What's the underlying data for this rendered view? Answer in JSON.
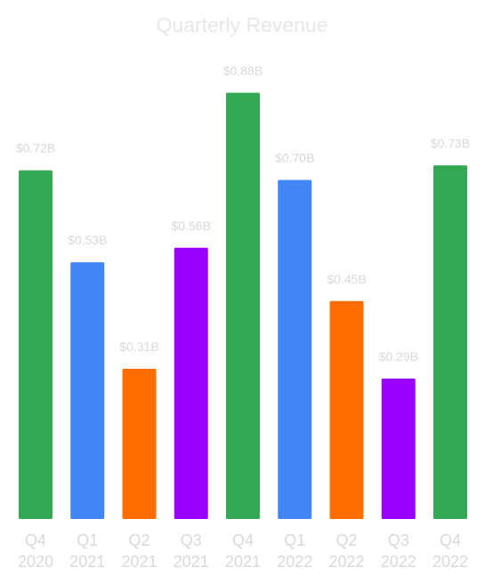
{
  "chart_data": {
    "type": "bar",
    "title": "Quarterly Revenue",
    "categories": [
      [
        "Q4",
        "2020"
      ],
      [
        "Q1",
        "2021"
      ],
      [
        "Q2",
        "2021"
      ],
      [
        "Q3",
        "2021"
      ],
      [
        "Q4",
        "2021"
      ],
      [
        "Q1",
        "2022"
      ],
      [
        "Q2",
        "2022"
      ],
      [
        "Q3",
        "2022"
      ],
      [
        "Q4",
        "2022"
      ]
    ],
    "values": [
      0.72,
      0.53,
      0.31,
      0.56,
      0.88,
      0.7,
      0.45,
      0.29,
      0.73
    ],
    "data_labels": [
      "$0.72B",
      "$0.53B",
      "$0.31B",
      "$0.56B",
      "$0.88B",
      "$0.70B",
      "$0.45B",
      "$0.29B",
      "$0.73B"
    ],
    "unit": "B",
    "ylim": [
      0,
      1.0
    ],
    "grid": false,
    "legend": "none",
    "colors": {
      "Q1": "#4285f4",
      "Q2": "#ff6d00",
      "Q3": "#9900ff",
      "Q4": "#34a853"
    }
  }
}
